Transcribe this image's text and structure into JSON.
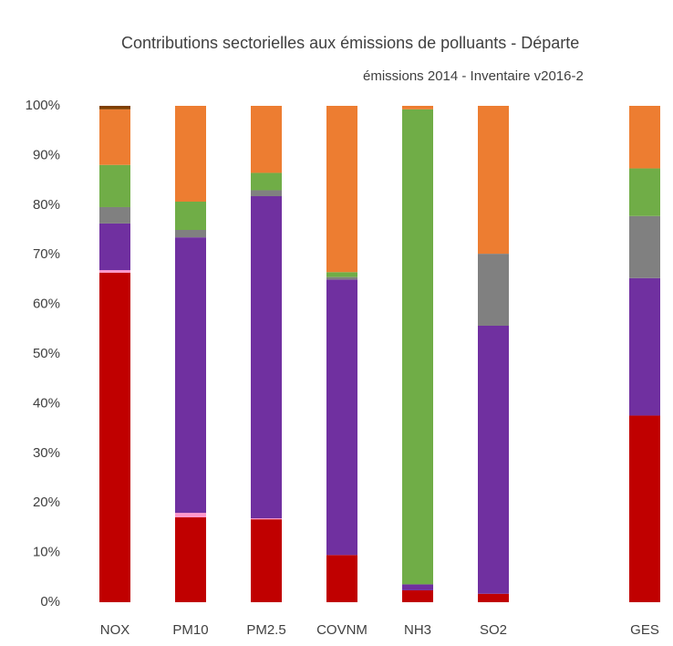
{
  "chart_data": {
    "type": "stacked_bar",
    "title": "Contributions sectorielles aux émissions de polluants - Départe",
    "subtitle": "émissions 2014 - Inventaire v2016-2",
    "categories": [
      "NOX",
      "PM10",
      "PM2.5",
      "COVNM",
      "NH3",
      "SO2",
      null,
      "GES"
    ],
    "series": [
      {
        "color": "#c00000",
        "values": [
          66.4,
          17.1,
          16.7,
          9.5,
          2.4,
          1.7,
          null,
          37.6
        ]
      },
      {
        "color": "#ff99cc",
        "values": [
          0.5,
          0.9,
          0.2,
          0,
          0,
          0,
          null,
          0
        ]
      },
      {
        "color": "#7030a0",
        "values": [
          9.4,
          55.5,
          64.9,
          55.5,
          1.2,
          54,
          null,
          27.7
        ]
      },
      {
        "color": "#808080",
        "values": [
          3.3,
          1.5,
          1.2,
          0.5,
          0,
          14.5,
          null,
          12.5
        ]
      },
      {
        "color": "#70ad47",
        "values": [
          8.5,
          5.7,
          3.5,
          1,
          95.7,
          0,
          null,
          9.6
        ]
      },
      {
        "color": "#ed7d31",
        "values": [
          11.2,
          19.3,
          13.5,
          33.5,
          0.7,
          29.8,
          null,
          12.6
        ]
      },
      {
        "color": "#7f3f00",
        "values": [
          0.7,
          0,
          0,
          0,
          0,
          0,
          null,
          0
        ]
      }
    ],
    "ylim": [
      0,
      100
    ],
    "yticks": [
      {
        "value": 0,
        "label": "0%"
      },
      {
        "value": 10,
        "label": "10%"
      },
      {
        "value": 20,
        "label": "20%"
      },
      {
        "value": 30,
        "label": "30%"
      },
      {
        "value": 40,
        "label": "40%"
      },
      {
        "value": 50,
        "label": "50%"
      },
      {
        "value": 60,
        "label": "60%"
      },
      {
        "value": 70,
        "label": "70%"
      },
      {
        "value": 80,
        "label": "80%"
      },
      {
        "value": 90,
        "label": "90%"
      },
      {
        "value": 100,
        "label": "100%"
      }
    ],
    "grid": false
  }
}
